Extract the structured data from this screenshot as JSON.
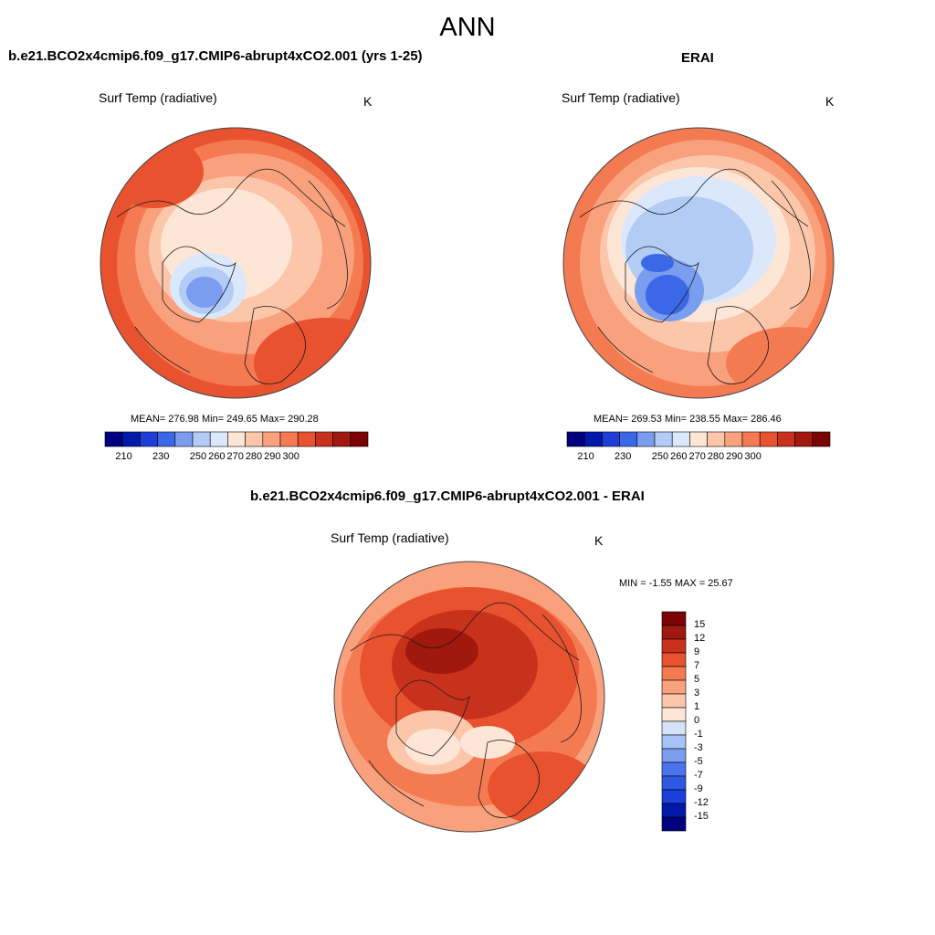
{
  "title": "ANN",
  "colors": {
    "abs_scale": [
      "#00007f",
      "#0019a8",
      "#1c3fd9",
      "#3a68e6",
      "#7a9df0",
      "#b3ccf5",
      "#dbe8fb",
      "#fde6d6",
      "#fcc6aa",
      "#f9a17c",
      "#f47a52",
      "#e8522f",
      "#c8321c",
      "#a0180e",
      "#7a0403"
    ],
    "diff_scale": [
      "#00007f",
      "#0019a8",
      "#1c3fd9",
      "#2e57e2",
      "#4a74ec",
      "#7a9df0",
      "#a7c2f4",
      "#d4e3fa",
      "#fde6d6",
      "#fcc6aa",
      "#f9a17c",
      "#f47a52",
      "#e8522f",
      "#c8321c",
      "#a0180e",
      "#7a0403"
    ],
    "coast": "#1a1a1a"
  },
  "panels": {
    "model": {
      "title": "b.e21.BCO2x4cmip6.f09_g17.CMIP6-abrupt4xCO2.001 (yrs 1-25)",
      "variable": "Surf Temp (radiative)",
      "units": "K",
      "stats": "MEAN= 276.98  Min= 249.65  Max= 290.28",
      "ticks": [
        "210",
        "230",
        "250",
        "260",
        "270",
        "280",
        "290",
        "300"
      ]
    },
    "obs": {
      "title": "ERAI",
      "variable": "Surf Temp (radiative)",
      "units": "K",
      "stats": "MEAN= 269.53  Min= 238.55  Max= 286.46",
      "ticks": [
        "210",
        "230",
        "250",
        "260",
        "270",
        "280",
        "290",
        "300"
      ]
    },
    "diff": {
      "title": "b.e21.BCO2x4cmip6.f09_g17.CMIP6-abrupt4xCO2.001 - ERAI",
      "variable": "Surf Temp (radiative)",
      "units": "K",
      "stats": "MIN =  -1.55 MAX =  25.67",
      "ticks": [
        "15",
        "12",
        "9",
        "7",
        "5",
        "3",
        "1",
        "0",
        "-1",
        "-3",
        "-5",
        "-7",
        "-9",
        "-12",
        "-15"
      ]
    }
  }
}
